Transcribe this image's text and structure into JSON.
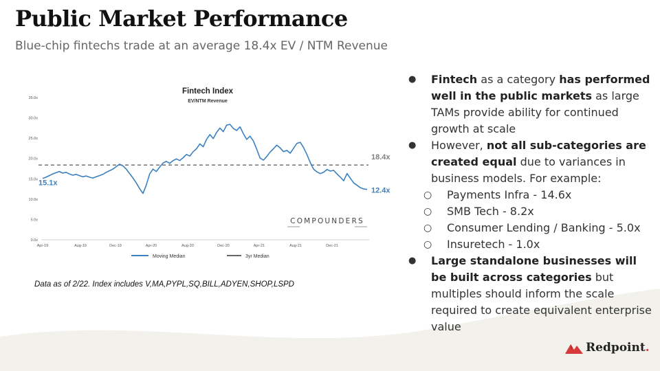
{
  "slide": {
    "title": "Public Market Performance",
    "subtitle": "Blue-chip fintechs trade at an average 18.4x EV / NTM Revenue",
    "note": "Data as of 2/22. Index includes V,MA,PYPL,SQ,BILL,ADYEN,SHOP,LSPD"
  },
  "bullets": [
    {
      "level": 1,
      "parts": [
        {
          "t": "Fintech",
          "b": true
        },
        {
          "t": " as a category ",
          "b": false
        },
        {
          "t": "has performed well in the public markets",
          "b": true
        },
        {
          "t": " as large TAMs provide ability for continued growth at scale",
          "b": false
        }
      ]
    },
    {
      "level": 1,
      "parts": [
        {
          "t": "However, ",
          "b": false
        },
        {
          "t": "not all sub-categories are created equal",
          "b": true
        },
        {
          "t": " due to variances in business models. For example:",
          "b": false
        }
      ]
    },
    {
      "level": 2,
      "parts": [
        {
          "t": "Payments Infra - 14.6x",
          "b": false
        }
      ]
    },
    {
      "level": 2,
      "parts": [
        {
          "t": "SMB Tech -  8.2x",
          "b": false
        }
      ]
    },
    {
      "level": 2,
      "parts": [
        {
          "t": "Consumer Lending / Banking - 5.0x",
          "b": false
        }
      ]
    },
    {
      "level": 2,
      "parts": [
        {
          "t": "Insuretech - 1.0x",
          "b": false
        }
      ]
    },
    {
      "level": 1,
      "parts": [
        {
          "t": "Large standalone businesses will be built across categories",
          "b": true
        },
        {
          "t": " but multiples should inform the scale required to create equivalent enterprise value",
          "b": false
        }
      ]
    }
  ],
  "logo": {
    "text": "Redpoint",
    "dot": ".",
    "color": "#d63a3a"
  },
  "chart_data": {
    "type": "line",
    "title": "Fintech Index",
    "subtitle": "EV/NTM Revenue",
    "ylim": [
      0,
      35
    ],
    "yticks": [
      "0.0x",
      "5.0x",
      "10.0x",
      "15.0x",
      "20.0x",
      "25.0x",
      "30.0x",
      "35.0x"
    ],
    "ytick_values": [
      0,
      5,
      10,
      15,
      20,
      25,
      30,
      35
    ],
    "xticks": [
      "Apr-19",
      "Aug-19",
      "Dec-19",
      "Apr-20",
      "Aug-20",
      "Dec-20",
      "Apr-21",
      "Aug-21",
      "Dec-21"
    ],
    "grid": false,
    "legend_position": "bottom",
    "series": [
      {
        "name": "Moving Median",
        "color": "#3a80c0",
        "values": [
          15.1,
          15.4,
          15.8,
          16.2,
          16.5,
          16.8,
          16.4,
          16.6,
          16.2,
          15.9,
          16.1,
          15.8,
          15.5,
          15.7,
          15.4,
          15.2,
          15.5,
          15.8,
          16.1,
          16.6,
          17.0,
          17.4,
          18.0,
          18.6,
          18.2,
          17.4,
          16.3,
          15.2,
          14.0,
          12.6,
          11.4,
          13.5,
          16.2,
          17.4,
          16.8,
          17.9,
          18.9,
          19.3,
          18.8,
          19.5,
          19.9,
          19.5,
          20.2,
          21.0,
          20.6,
          21.7,
          22.4,
          23.6,
          22.9,
          24.7,
          25.9,
          24.9,
          26.4,
          27.5,
          26.6,
          28.2,
          28.4,
          27.4,
          26.9,
          27.8,
          26.1,
          24.7,
          25.5,
          24.3,
          22.3,
          20.1,
          19.6,
          20.5,
          21.6,
          22.4,
          23.3,
          22.6,
          21.7,
          22.0,
          21.3,
          22.5,
          23.7,
          24.0,
          22.7,
          21.0,
          19.0,
          17.4,
          16.7,
          16.3,
          16.6,
          17.3,
          16.9,
          17.1,
          16.2,
          15.4,
          14.5,
          16.3,
          15.1,
          14.0,
          13.4,
          12.8,
          12.5,
          12.4
        ]
      },
      {
        "name": "3yr Median",
        "color": "#666666",
        "values": [
          18.4,
          18.4
        ]
      }
    ],
    "annotations": [
      {
        "text": "15.1x",
        "color": "#3a80c0"
      },
      {
        "text": "18.4x",
        "color": "#808080"
      },
      {
        "text": "12.4x",
        "color": "#3a80c0"
      }
    ],
    "watermark": "COMPOUNDERS"
  }
}
